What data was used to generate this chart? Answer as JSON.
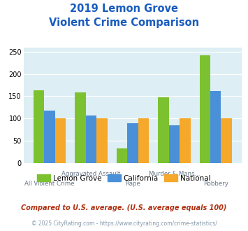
{
  "title_line1": "2019 Lemon Grove",
  "title_line2": "Violent Crime Comparison",
  "categories": [
    "All Violent Crime",
    "Aggravated Assault",
    "Rape",
    "Murder & Mans...",
    "Robbery"
  ],
  "lemon_grove": [
    163,
    158,
    33,
    148,
    242
  ],
  "california": [
    117,
    106,
    89,
    84,
    162
  ],
  "national": [
    100,
    100,
    100,
    100,
    100
  ],
  "colors": {
    "lemon_grove": "#7cc230",
    "california": "#4a90d9",
    "national": "#f5a82a"
  },
  "ylim": [
    0,
    260
  ],
  "yticks": [
    0,
    50,
    100,
    150,
    200,
    250
  ],
  "background_color": "#ddeef4",
  "legend_labels": [
    "Lemon Grove",
    "California",
    "National"
  ],
  "footnote1": "Compared to U.S. average. (U.S. average equals 100)",
  "footnote2": "© 2025 CityRating.com - https://www.cityrating.com/crime-statistics/",
  "title_color": "#1a5cbf",
  "footnote1_color": "#b03010",
  "footnote2_color": "#8899aa",
  "xtick_labels_bottom": [
    "All Violent Crime",
    "",
    "Rape",
    "",
    "Robbery"
  ],
  "xtick_labels_top": [
    "",
    "Aggravated Assault",
    "",
    "Murder & Mans...",
    ""
  ]
}
